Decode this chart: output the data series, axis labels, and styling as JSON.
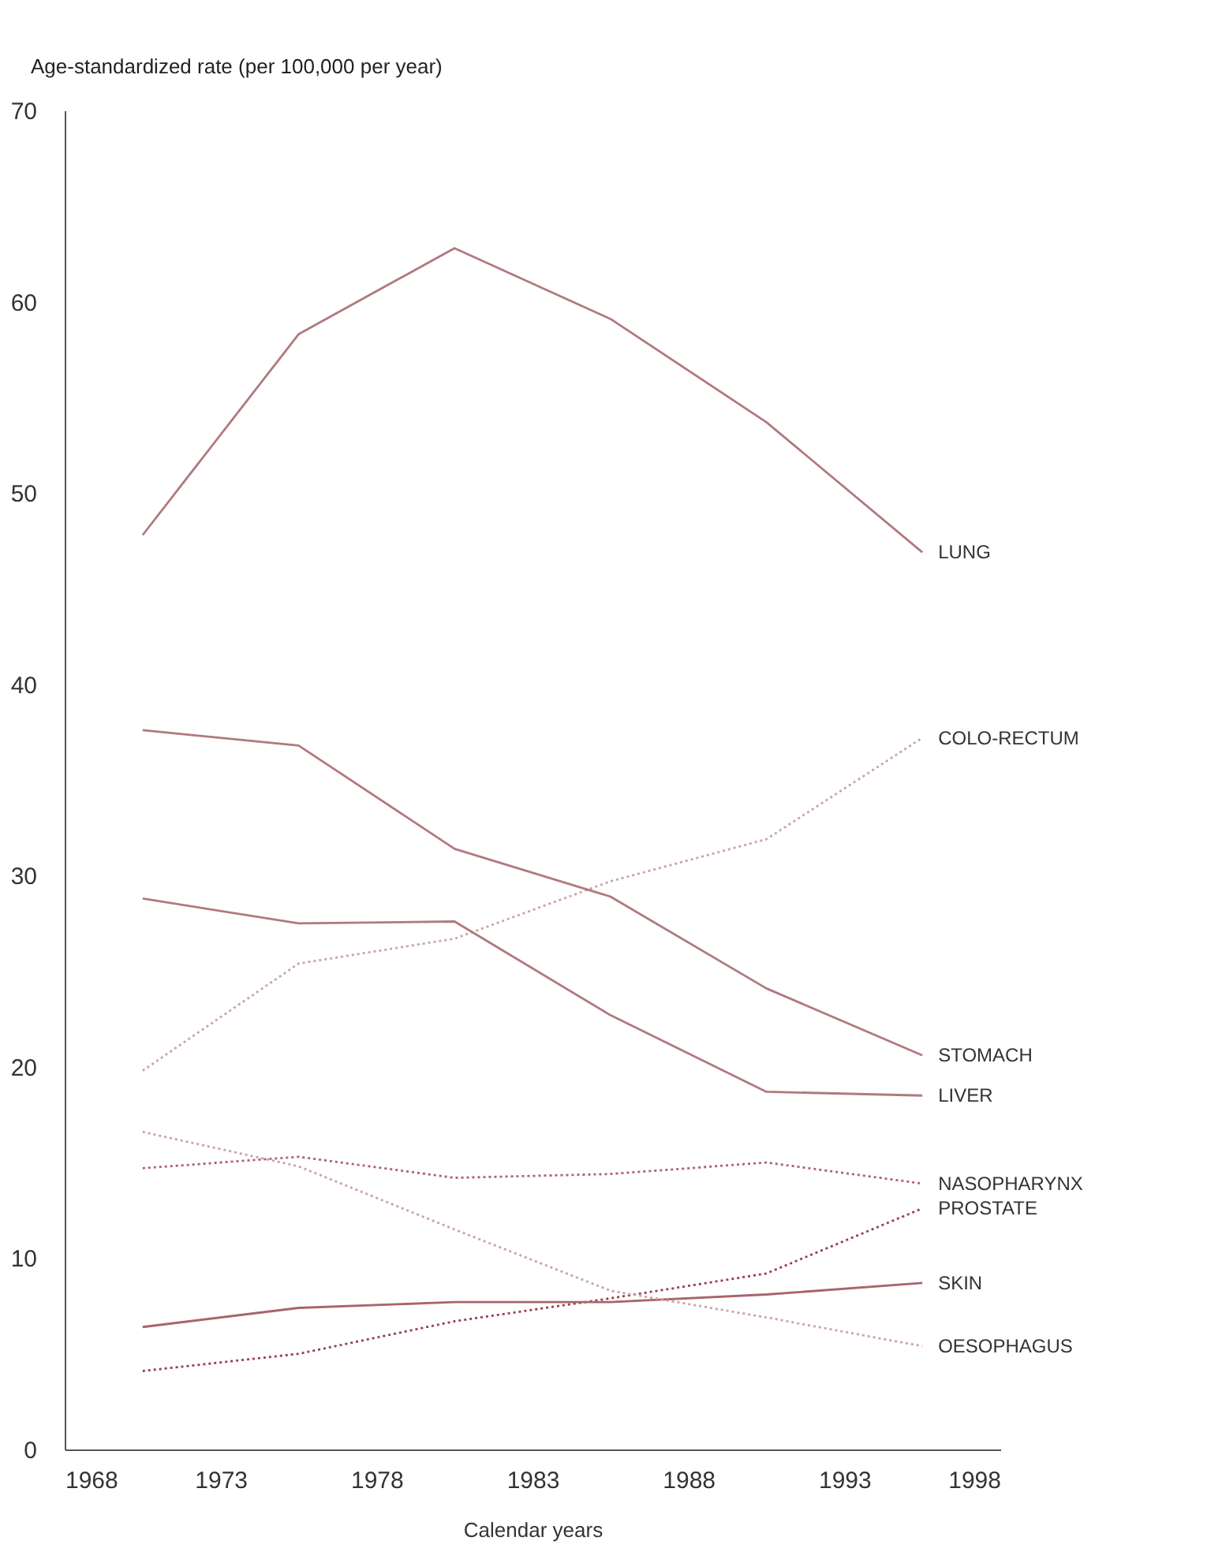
{
  "chart_data": {
    "type": "line",
    "xlabel": "Calendar years",
    "ylabel": "Age-standardized rate (per 100,000 per year)",
    "x": [
      1970.5,
      1975.5,
      1980.5,
      1985.5,
      1990.5,
      1995.5
    ],
    "xlim": [
      1968,
      1998
    ],
    "xticks": [
      1968,
      1973,
      1978,
      1983,
      1988,
      1993,
      1998
    ],
    "ylim": [
      0,
      70
    ],
    "yticks": [
      0,
      10,
      20,
      30,
      40,
      50,
      60,
      70
    ],
    "grid": false,
    "legend": false,
    "marker": "none",
    "series": [
      {
        "name": "LUNG",
        "color": "#b07a7e",
        "line_style": "solid",
        "values": [
          47.8,
          58.3,
          62.8,
          59.1,
          53.7,
          46.9
        ]
      },
      {
        "name": "COLO-RECTUM",
        "color": "#c9a3aa",
        "line_style": "dotted",
        "values": [
          19.8,
          25.4,
          26.7,
          29.7,
          31.9,
          37.2
        ]
      },
      {
        "name": "STOMACH",
        "color": "#b07a7e",
        "line_style": "solid",
        "values": [
          37.6,
          36.8,
          31.4,
          28.9,
          24.1,
          20.6
        ]
      },
      {
        "name": "LIVER",
        "color": "#b07a7e",
        "line_style": "solid",
        "values": [
          28.8,
          27.5,
          27.6,
          22.7,
          18.7,
          18.5
        ]
      },
      {
        "name": "NASOPHARYNX",
        "color": "#b0606e",
        "line_style": "dotted",
        "values": [
          14.7,
          15.3,
          14.2,
          14.4,
          15.0,
          13.9
        ]
      },
      {
        "name": "PROSTATE",
        "color": "#96404e",
        "line_style": "dotted",
        "values": [
          4.1,
          5.0,
          6.7,
          7.9,
          9.2,
          12.6
        ]
      },
      {
        "name": "SKIN",
        "color": "#a8646c",
        "line_style": "solid",
        "values": [
          6.4,
          7.4,
          7.7,
          7.7,
          8.1,
          8.7
        ]
      },
      {
        "name": "OESOPHAGUS",
        "color": "#c9a3aa",
        "line_style": "dotted",
        "values": [
          16.6,
          14.8,
          11.5,
          8.3,
          6.9,
          5.4
        ]
      }
    ]
  }
}
